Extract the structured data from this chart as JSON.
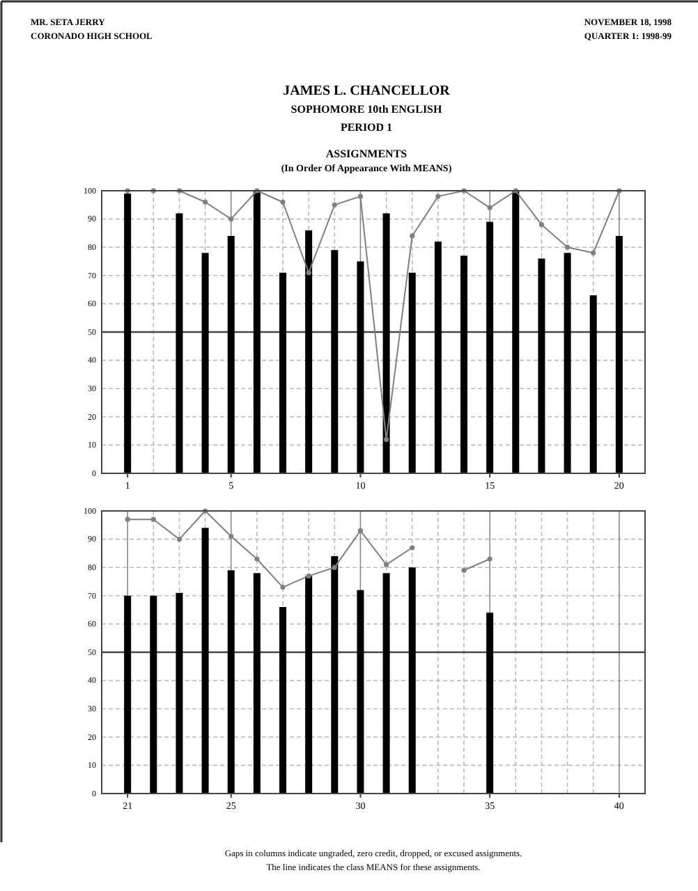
{
  "chart_data": [
    {
      "type": "bar",
      "title": "JAMES L. CHANCELLOR\nSOPHOMORE 10th ENGLISH\nPERIOD 1",
      "subtitle": "ASSIGNMENTS\n(In Order Of Appearance With MEANS)",
      "annotations": [
        "MR. SETA JERRY",
        "CORONADO HIGH SCHOOL",
        "NOVEMBER 18, 1998",
        "QUARTER 1: 1998-99"
      ],
      "x": [
        1,
        2,
        3,
        4,
        5,
        6,
        7,
        8,
        9,
        10,
        11,
        12,
        13,
        14,
        15,
        16,
        17,
        18,
        19,
        20
      ],
      "series": [
        {
          "type": "bar",
          "color": "#000000",
          "values": [
            99,
            null,
            92,
            78,
            84,
            100,
            71,
            86,
            79,
            75,
            92,
            71,
            82,
            77,
            89,
            100,
            76,
            78,
            63,
            84
          ]
        },
        {
          "type": "line",
          "color": "#808080",
          "marker": "circle",
          "values": [
            100,
            100,
            100,
            96,
            90,
            100,
            96,
            71,
            95,
            98,
            12,
            84,
            98,
            100,
            94,
            100,
            88,
            80,
            78,
            100
          ]
        }
      ],
      "ref_lines": [
        {
          "axis": "y",
          "value": 50,
          "color": "#444444"
        }
      ],
      "xlim": [
        0,
        21
      ],
      "xticks": [
        1,
        5,
        10,
        15,
        20
      ],
      "ylim": [
        0,
        100
      ],
      "yticks": [
        0,
        10,
        20,
        30,
        40,
        50,
        60,
        70,
        80,
        90,
        100
      ],
      "grid": true
    },
    {
      "type": "bar",
      "annotations": [
        "Gaps in columns indicate ungraded, zero credit, dropped, or excused assignments.",
        "The line indicates the class MEANS for these assignments."
      ],
      "x": [
        21,
        22,
        23,
        24,
        25,
        26,
        27,
        28,
        29,
        30,
        31,
        32,
        33,
        34,
        35
      ],
      "series": [
        {
          "type": "bar",
          "color": "#000000",
          "values": [
            70,
            70,
            71,
            94,
            79,
            78,
            66,
            77,
            84,
            72,
            78,
            80,
            null,
            null,
            64
          ]
        },
        {
          "type": "line",
          "color": "#808080",
          "marker": "circle",
          "values": [
            97,
            97,
            90,
            100,
            91,
            83,
            73,
            77,
            80,
            93,
            81,
            87,
            null,
            79,
            83
          ]
        }
      ],
      "ref_lines": [
        {
          "axis": "y",
          "value": 50,
          "color": "#444444"
        }
      ],
      "xlim": [
        20,
        41
      ],
      "xticks": [
        21,
        25,
        30,
        35,
        40
      ],
      "ylim": [
        0,
        100
      ],
      "yticks": [
        0,
        10,
        20,
        30,
        40,
        50,
        60,
        70,
        80,
        90,
        100
      ],
      "grid": true
    }
  ]
}
